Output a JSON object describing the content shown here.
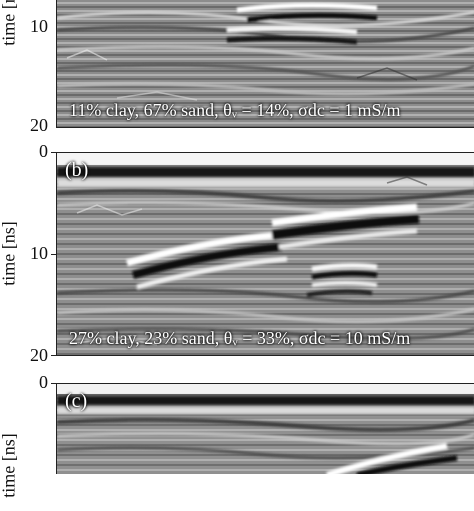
{
  "panels": [
    {
      "letter": "",
      "caption": "11% clay, 67% sand, θᵥ = 14%, σdc = 1 mS/m"
    },
    {
      "letter": "(b)",
      "caption": "27% clay, 23% sand, θᵥ = 33%, σdc = 10 mS/m"
    },
    {
      "letter": "(c)",
      "caption": ""
    }
  ],
  "axis": {
    "ylabel": "time [ns]",
    "ticks_a": [
      "10",
      "20"
    ],
    "ticks_b": [
      "0",
      "10",
      "20"
    ],
    "ticks_c": [
      "0"
    ]
  }
}
